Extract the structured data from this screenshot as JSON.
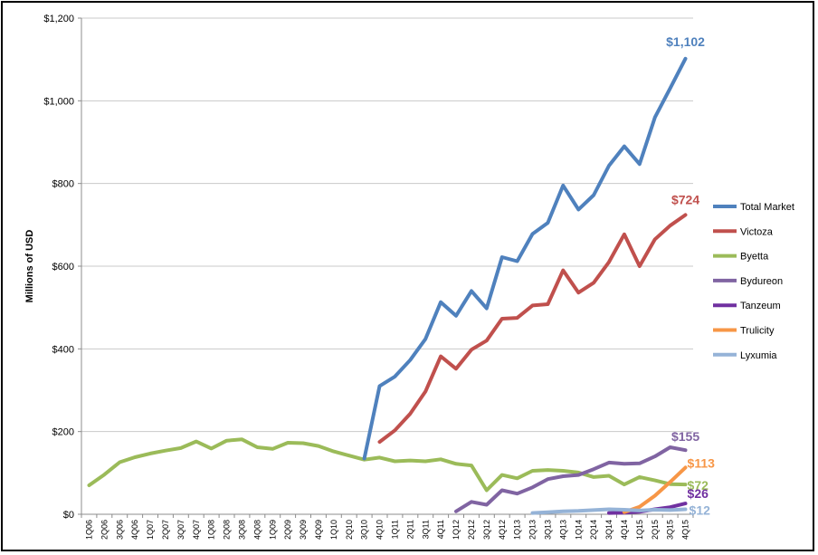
{
  "chart_data": {
    "type": "line",
    "ylabel": "Millions of USD",
    "ylim": [
      0,
      1200
    ],
    "yticks": [
      0,
      200,
      400,
      600,
      800,
      1000,
      1200
    ],
    "ytick_labels": [
      "$0",
      "$200",
      "$400",
      "$600",
      "$800",
      "$1,000",
      "$1,200"
    ],
    "grid": true,
    "legend_position": "right",
    "x": [
      "1Q06",
      "2Q06",
      "3Q06",
      "4Q06",
      "1Q07",
      "2Q07",
      "3Q07",
      "4Q07",
      "1Q08",
      "2Q08",
      "3Q08",
      "4Q08",
      "1Q09",
      "2Q09",
      "3Q09",
      "4Q09",
      "1Q10",
      "2Q10",
      "3Q10",
      "4Q10",
      "1Q11",
      "2Q11",
      "3Q11",
      "4Q11",
      "1Q12",
      "2Q12",
      "3Q12",
      "4Q12",
      "1Q13",
      "2Q13",
      "3Q13",
      "4Q13",
      "1Q14",
      "2Q14",
      "3Q14",
      "4Q14",
      "1Q15",
      "2Q15",
      "3Q15",
      "4Q15"
    ],
    "series": [
      {
        "name": "Total Market",
        "color": "#4f81bd",
        "end_label": "$1,102",
        "values": [
          null,
          null,
          null,
          null,
          null,
          null,
          null,
          null,
          null,
          null,
          null,
          null,
          null,
          null,
          null,
          null,
          null,
          null,
          135,
          310,
          333,
          373,
          424,
          513,
          480,
          540,
          498,
          622,
          612,
          678,
          705,
          795,
          737,
          772,
          843,
          890,
          847,
          960,
          1030,
          1102
        ]
      },
      {
        "name": "Victoza",
        "color": "#c0504d",
        "end_label": "$724",
        "values": [
          null,
          null,
          null,
          null,
          null,
          null,
          null,
          null,
          null,
          null,
          null,
          null,
          null,
          null,
          null,
          null,
          null,
          null,
          null,
          175,
          203,
          243,
          297,
          382,
          352,
          398,
          420,
          473,
          475,
          505,
          508,
          590,
          536,
          560,
          610,
          677,
          600,
          665,
          698,
          724
        ]
      },
      {
        "name": "Byetta",
        "color": "#9bbb59",
        "end_label": "$72",
        "values": [
          70,
          96,
          126,
          138,
          147,
          154,
          160,
          176,
          159,
          178,
          181,
          162,
          158,
          173,
          172,
          165,
          152,
          142,
          132,
          137,
          128,
          130,
          128,
          133,
          122,
          118,
          58,
          95,
          87,
          105,
          107,
          105,
          101,
          90,
          93,
          72,
          90,
          82,
          73,
          72
        ]
      },
      {
        "name": "Bydureon",
        "color": "#8064a2",
        "end_label": "$155",
        "values": [
          null,
          null,
          null,
          null,
          null,
          null,
          null,
          null,
          null,
          null,
          null,
          null,
          null,
          null,
          null,
          null,
          null,
          null,
          null,
          null,
          null,
          null,
          null,
          null,
          7,
          30,
          23,
          58,
          50,
          65,
          85,
          92,
          95,
          109,
          125,
          122,
          123,
          140,
          162,
          155
        ]
      },
      {
        "name": "Tanzeum",
        "color": "#7030a0",
        "end_label": "$26",
        "values": [
          null,
          null,
          null,
          null,
          null,
          null,
          null,
          null,
          null,
          null,
          null,
          null,
          null,
          null,
          null,
          null,
          null,
          null,
          null,
          null,
          null,
          null,
          null,
          null,
          null,
          null,
          null,
          null,
          null,
          null,
          null,
          null,
          null,
          null,
          3,
          4,
          6,
          12,
          17,
          26
        ]
      },
      {
        "name": "Trulicity",
        "color": "#f79646",
        "end_label": "$113",
        "values": [
          null,
          null,
          null,
          null,
          null,
          null,
          null,
          null,
          null,
          null,
          null,
          null,
          null,
          null,
          null,
          null,
          null,
          null,
          null,
          null,
          null,
          null,
          null,
          null,
          null,
          null,
          null,
          null,
          null,
          null,
          null,
          null,
          null,
          null,
          null,
          5,
          18,
          45,
          78,
          113
        ]
      },
      {
        "name": "Lyxumia",
        "color": "#95b3d7",
        "end_label": "$12",
        "values": [
          null,
          null,
          null,
          null,
          null,
          null,
          null,
          null,
          null,
          null,
          null,
          null,
          null,
          null,
          null,
          null,
          null,
          null,
          null,
          null,
          null,
          null,
          null,
          null,
          null,
          null,
          null,
          null,
          null,
          3,
          5,
          7,
          8,
          10,
          12,
          11,
          9,
          11,
          10,
          12
        ]
      }
    ]
  }
}
